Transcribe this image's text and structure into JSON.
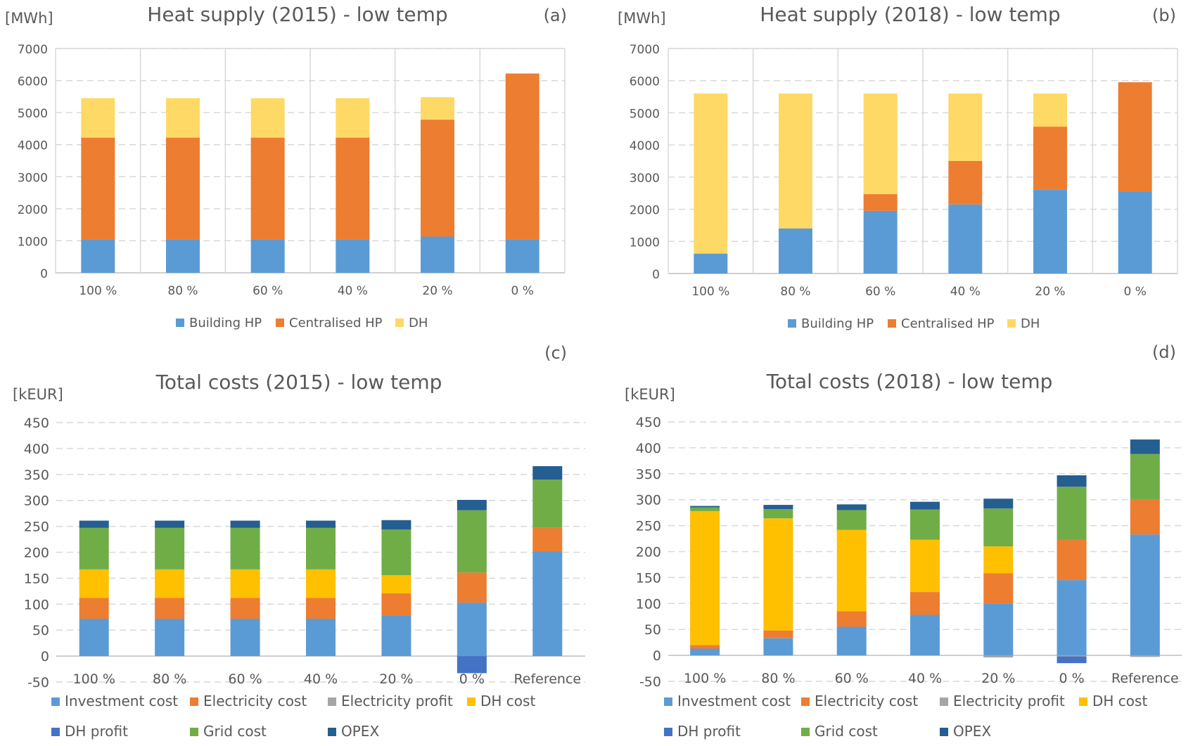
{
  "colors": {
    "building_hp": "#5B9BD5",
    "centralised_hp": "#ED7D31",
    "dh": "#FFD966",
    "investment_cost": "#5B9BD5",
    "electricity_cost": "#ED7D31",
    "electricity_profit": "#A5A5A5",
    "dh_cost": "#FFC000",
    "dh_profit": "#4472C4",
    "grid_cost": "#70AD47",
    "opex": "#255E91",
    "grid_line": "#D9D9D9",
    "text": "#595959"
  },
  "chart_data": [
    {
      "id": "a",
      "type": "bar",
      "stacked": true,
      "title": "Heat supply (2015) - low temp",
      "panel_label": "(a)",
      "unit_label": "[MWh]",
      "ylim": [
        0,
        7000
      ],
      "yticks": [
        0,
        1000,
        2000,
        3000,
        4000,
        5000,
        6000,
        7000
      ],
      "grid": true,
      "legend_position": "bottom",
      "categories": [
        "100 %",
        "80 %",
        "60 %",
        "40 %",
        "20 %",
        "0 %"
      ],
      "series": [
        {
          "name": "Building HP",
          "color_key": "building_hp",
          "values": [
            1050,
            1050,
            1050,
            1050,
            1130,
            1050
          ]
        },
        {
          "name": "Centralised HP",
          "color_key": "centralised_hp",
          "values": [
            3170,
            3170,
            3170,
            3170,
            3650,
            5170
          ]
        },
        {
          "name": "DH",
          "color_key": "dh",
          "values": [
            1230,
            1230,
            1230,
            1230,
            700,
            0
          ]
        }
      ]
    },
    {
      "id": "b",
      "type": "bar",
      "stacked": true,
      "title": "Heat supply (2018) - low temp",
      "panel_label": "(b)",
      "unit_label": "[MWh]",
      "ylim": [
        0,
        7000
      ],
      "yticks": [
        0,
        1000,
        2000,
        3000,
        4000,
        5000,
        6000,
        7000
      ],
      "grid": true,
      "legend_position": "bottom",
      "categories": [
        "100 %",
        "80 %",
        "60 %",
        "40 %",
        "20 %",
        "0 %"
      ],
      "series": [
        {
          "name": "Building HP",
          "color_key": "building_hp",
          "values": [
            620,
            1400,
            1950,
            2150,
            2620,
            2550
          ]
        },
        {
          "name": "Centralised HP",
          "color_key": "centralised_hp",
          "values": [
            0,
            0,
            520,
            1350,
            1950,
            3400
          ]
        },
        {
          "name": "DH",
          "color_key": "dh",
          "values": [
            4980,
            4200,
            3130,
            2100,
            1030,
            0
          ]
        }
      ]
    },
    {
      "id": "c",
      "type": "bar",
      "stacked": true,
      "title": "Total costs (2015) - low temp",
      "panel_label": "(c)",
      "unit_label": "[kEUR]",
      "ylim": [
        -50,
        450
      ],
      "yticks": [
        -50,
        0,
        50,
        100,
        150,
        200,
        250,
        300,
        350,
        400,
        450
      ],
      "grid": true,
      "legend_position": "bottom",
      "categories": [
        "100 %",
        "80 %",
        "60 %",
        "40 %",
        "20 %",
        "0 %",
        "Reference"
      ],
      "series": [
        {
          "name": "Investment cost",
          "color_key": "investment_cost",
          "values": [
            72,
            72,
            72,
            72,
            78,
            103,
            202
          ]
        },
        {
          "name": "Electricity cost",
          "color_key": "electricity_cost",
          "values": [
            40,
            40,
            40,
            40,
            43,
            58,
            45
          ]
        },
        {
          "name": "Electricity profit",
          "color_key": "electricity_profit",
          "values": [
            0,
            0,
            0,
            0,
            0,
            0,
            0
          ]
        },
        {
          "name": "DH cost",
          "color_key": "dh_cost",
          "values": [
            55,
            55,
            55,
            55,
            35,
            0,
            0
          ]
        },
        {
          "name": "DH profit",
          "color_key": "dh_profit",
          "values": [
            0,
            0,
            0,
            0,
            0,
            -33,
            0
          ]
        },
        {
          "name": "Grid cost",
          "color_key": "grid_cost",
          "values": [
            80,
            80,
            80,
            80,
            88,
            120,
            93
          ]
        },
        {
          "name": "OPEX",
          "color_key": "opex",
          "values": [
            14,
            14,
            14,
            14,
            18,
            20,
            26
          ]
        }
      ]
    },
    {
      "id": "d",
      "type": "bar",
      "stacked": true,
      "title": "Total costs (2018) - low temp",
      "panel_label": "(d)",
      "unit_label": "[kEUR]",
      "ylim": [
        -50,
        450
      ],
      "yticks": [
        -50,
        0,
        50,
        100,
        150,
        200,
        250,
        300,
        350,
        400,
        450
      ],
      "grid": true,
      "legend_position": "bottom",
      "categories": [
        "100 %",
        "80 %",
        "60 %",
        "40 %",
        "20 %",
        "0 %",
        "Reference"
      ],
      "series": [
        {
          "name": "Investment cost",
          "color_key": "investment_cost",
          "values": [
            13,
            33,
            55,
            78,
            100,
            145,
            233
          ]
        },
        {
          "name": "Electricity cost",
          "color_key": "electricity_cost",
          "values": [
            7,
            15,
            30,
            44,
            58,
            78,
            68
          ]
        },
        {
          "name": "Electricity profit",
          "color_key": "electricity_profit",
          "values": [
            0,
            0,
            0,
            0,
            -4,
            -2,
            -3
          ]
        },
        {
          "name": "DH cost",
          "color_key": "dh_cost",
          "values": [
            258,
            216,
            157,
            101,
            52,
            0,
            0
          ]
        },
        {
          "name": "DH profit",
          "color_key": "dh_profit",
          "values": [
            0,
            0,
            0,
            0,
            0,
            -13,
            0
          ]
        },
        {
          "name": "Grid cost",
          "color_key": "grid_cost",
          "values": [
            7,
            18,
            38,
            58,
            73,
            102,
            87
          ]
        },
        {
          "name": "OPEX",
          "color_key": "opex",
          "values": [
            3,
            8,
            11,
            15,
            19,
            22,
            28
          ]
        }
      ]
    }
  ]
}
